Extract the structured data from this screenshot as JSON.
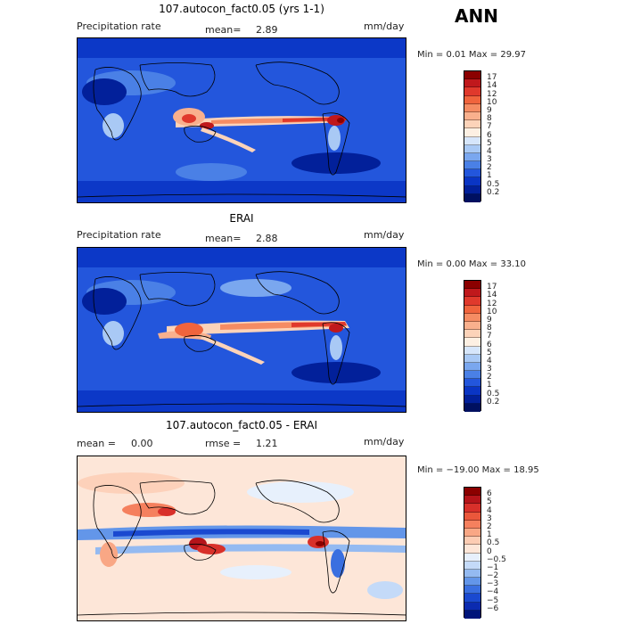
{
  "season": "ANN",
  "panels": [
    {
      "title": "107.autocon_fact0.05 (yrs 1-1)",
      "left_label": "Precipitation rate",
      "mean_label": "mean=",
      "mean_value": "2.89",
      "units": "mm/day",
      "minmax": "Min =    0.01  Max =   29.97",
      "colorbar_labels": [
        "17",
        "14",
        "12",
        "10",
        "9",
        "8",
        "7",
        "6",
        "5",
        "4",
        "3",
        "2",
        "1",
        "0.5",
        "0.2"
      ],
      "colors": [
        "#8b0000",
        "#c0181c",
        "#e0392c",
        "#f0643d",
        "#f58c63",
        "#f9b08d",
        "#fcd3b9",
        "#fdf0e3",
        "#d6e6fb",
        "#a9c9f5",
        "#7aa7ef",
        "#4a80e6",
        "#2356dc",
        "#0a35c4",
        "#02209a",
        "#001060"
      ]
    },
    {
      "title": "ERAI",
      "left_label": "Precipitation rate",
      "mean_label": "mean=",
      "mean_value": "2.88",
      "units": "mm/day",
      "minmax": "Min =    0.00  Max =   33.10",
      "colorbar_labels": [
        "17",
        "14",
        "12",
        "10",
        "9",
        "8",
        "7",
        "6",
        "5",
        "4",
        "3",
        "2",
        "1",
        "0.5",
        "0.2"
      ],
      "colors": [
        "#8b0000",
        "#c0181c",
        "#e0392c",
        "#f0643d",
        "#f58c63",
        "#f9b08d",
        "#fcd3b9",
        "#fdf0e3",
        "#d6e6fb",
        "#a9c9f5",
        "#7aa7ef",
        "#4a80e6",
        "#2356dc",
        "#0a35c4",
        "#02209a",
        "#001060"
      ]
    },
    {
      "title": "107.autocon_fact0.05 - ERAI",
      "left_label": "mean =",
      "mean_label": "",
      "mean_value": "0.00",
      "rmse_label": "rmse =",
      "rmse_value": "1.21",
      "units": "mm/day",
      "minmax": "Min = −19.00  Max =   18.95",
      "colorbar_labels": [
        "6",
        "5",
        "4",
        "3",
        "2",
        "1",
        "0.5",
        "0",
        "−0.5",
        "−1",
        "−2",
        "−3",
        "−4",
        "−5",
        "−6"
      ],
      "colors": [
        "#8b0000",
        "#b5141a",
        "#d8302a",
        "#ea573b",
        "#f5805e",
        "#f9a785",
        "#fcccb3",
        "#fde6d8",
        "#e7f0fc",
        "#c4daf8",
        "#94baf1",
        "#6396e9",
        "#3a6fe0",
        "#1a49d0",
        "#0b2bb0",
        "#00157a"
      ]
    }
  ]
}
